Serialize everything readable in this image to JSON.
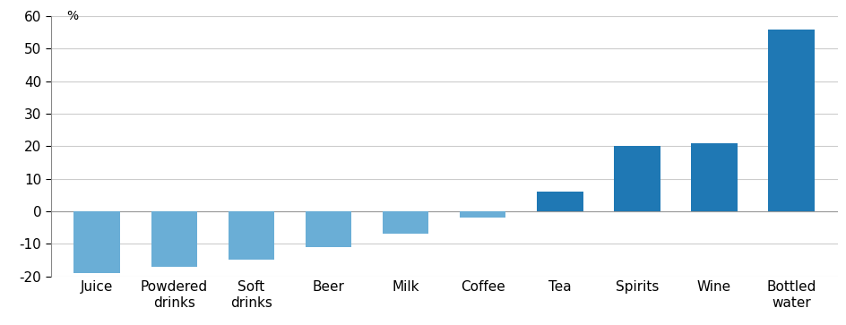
{
  "chart_data": {
    "type": "bar",
    "y_label": "%",
    "categories": [
      "Juice",
      "Powdered\ndrinks",
      "Soft\ndrinks",
      "Beer",
      "Milk",
      "Coffee",
      "Tea",
      "Spirits",
      "Wine",
      "Bottled\nwater"
    ],
    "values": [
      -19,
      -17,
      -15,
      -11,
      -7,
      -2,
      6,
      20,
      21,
      56
    ],
    "colors": [
      "#6aaed6",
      "#6aaed6",
      "#6aaed6",
      "#6aaed6",
      "#6aaed6",
      "#6aaed6",
      "#1f78b4",
      "#1f78b4",
      "#1f78b4",
      "#1f78b4"
    ],
    "ylim": [
      -20,
      60
    ],
    "yticks": [
      -20,
      -10,
      0,
      10,
      20,
      30,
      40,
      50,
      60
    ],
    "grid": true
  }
}
